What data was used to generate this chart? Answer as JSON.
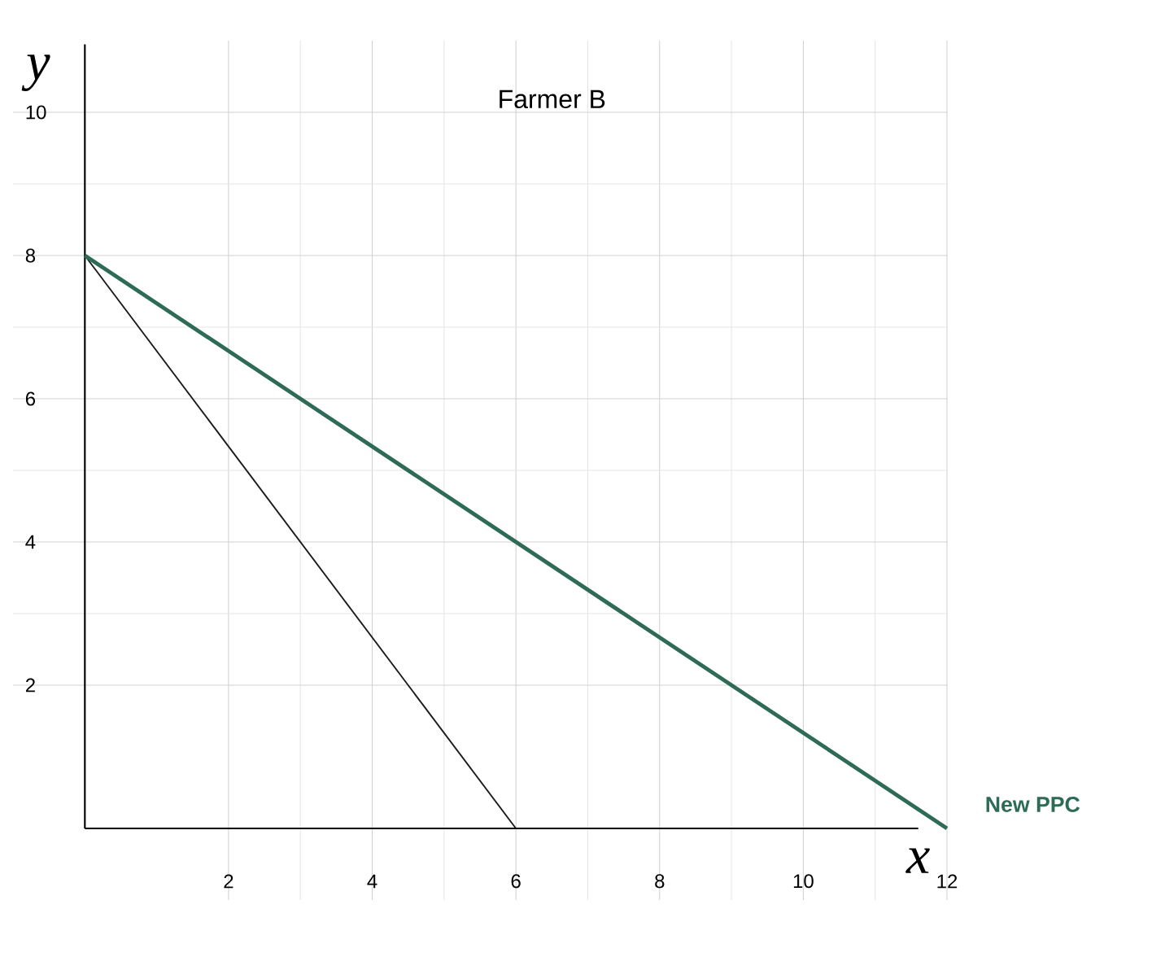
{
  "chart_data": {
    "type": "line",
    "title": "Farmer B",
    "xlabel": "x",
    "ylabel": "y",
    "series": [
      {
        "color": "#1a1a1a",
        "x": [
          0,
          6
        ],
        "values": [
          8,
          0
        ]
      },
      {
        "color": "#2e6b57",
        "x": [
          0,
          12
        ],
        "values": [
          8,
          0
        ]
      }
    ],
    "xlim": [
      -1,
      12
    ],
    "ylim": [
      -1,
      11
    ],
    "xticks": [
      2,
      4,
      6,
      8,
      10,
      12
    ],
    "yticks": [
      2,
      4,
      6,
      8,
      10
    ],
    "grid": true,
    "marker": "none",
    "line_style": "solid",
    "annotations": [
      {
        "text": "New PPC",
        "x": 12,
        "y": 0
      }
    ]
  }
}
